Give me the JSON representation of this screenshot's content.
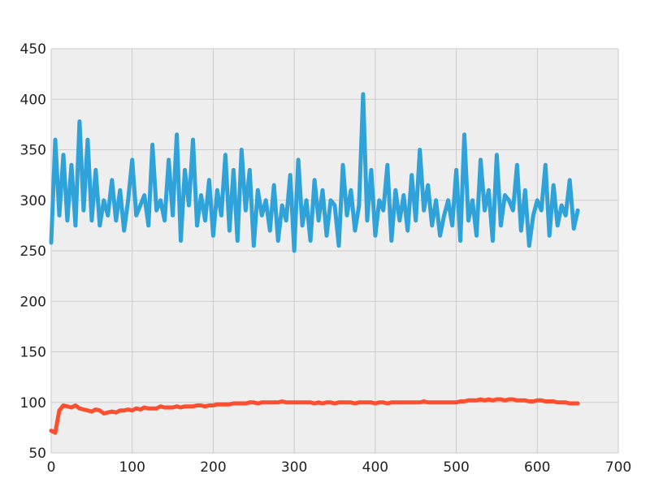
{
  "chart_data": {
    "type": "line",
    "title": "",
    "xlabel": "",
    "ylabel": "",
    "xlim": [
      0,
      700
    ],
    "ylim": [
      50,
      450
    ],
    "x_ticks": [
      "0",
      "100",
      "200",
      "300",
      "400",
      "500",
      "600",
      "700"
    ],
    "y_ticks": [
      "50",
      "100",
      "150",
      "200",
      "250",
      "300",
      "350",
      "400",
      "450"
    ],
    "grid": true,
    "legend": "none",
    "style": {
      "background": "#eeeeee",
      "grid_color": "#cbcbcb"
    },
    "x": [
      0,
      5,
      10,
      15,
      20,
      25,
      30,
      35,
      40,
      45,
      50,
      55,
      60,
      65,
      70,
      75,
      80,
      85,
      90,
      95,
      100,
      105,
      110,
      115,
      120,
      125,
      130,
      135,
      140,
      145,
      150,
      155,
      160,
      165,
      170,
      175,
      180,
      185,
      190,
      195,
      200,
      205,
      210,
      215,
      220,
      225,
      230,
      235,
      240,
      245,
      250,
      255,
      260,
      265,
      270,
      275,
      280,
      285,
      290,
      295,
      300,
      305,
      310,
      315,
      320,
      325,
      330,
      335,
      340,
      345,
      350,
      355,
      360,
      365,
      370,
      375,
      380,
      385,
      390,
      395,
      400,
      405,
      410,
      415,
      420,
      425,
      430,
      435,
      440,
      445,
      450,
      455,
      460,
      465,
      470,
      475,
      480,
      485,
      490,
      495,
      500,
      505,
      510,
      515,
      520,
      525,
      530,
      535,
      540,
      545,
      550,
      555,
      560,
      565,
      570,
      575,
      580,
      585,
      590,
      595,
      600,
      605,
      610,
      615,
      620,
      625,
      630,
      635,
      640,
      645,
      650
    ],
    "series": [
      {
        "color": "#30a2da",
        "values": [
          258,
          360,
          285,
          345,
          280,
          335,
          275,
          378,
          290,
          360,
          280,
          330,
          275,
          300,
          285,
          320,
          280,
          310,
          270,
          300,
          340,
          285,
          295,
          305,
          275,
          355,
          290,
          300,
          280,
          340,
          285,
          365,
          260,
          330,
          295,
          360,
          275,
          305,
          280,
          320,
          265,
          310,
          285,
          345,
          270,
          330,
          260,
          350,
          290,
          330,
          255,
          310,
          285,
          300,
          270,
          315,
          260,
          295,
          280,
          325,
          250,
          340,
          275,
          300,
          260,
          320,
          280,
          310,
          265,
          300,
          295,
          255,
          335,
          285,
          310,
          270,
          295,
          405,
          280,
          330,
          265,
          300,
          290,
          335,
          260,
          310,
          280,
          305,
          270,
          325,
          280,
          350,
          290,
          315,
          275,
          300,
          265,
          285,
          300,
          275,
          330,
          260,
          365,
          280,
          300,
          265,
          340,
          290,
          310,
          260,
          345,
          275,
          305,
          300,
          290,
          335,
          270,
          310,
          255,
          285,
          300,
          290,
          335,
          265,
          315,
          275,
          295,
          285,
          320,
          272,
          290
        ]
      },
      {
        "color": "#fc4f30",
        "values": [
          72,
          70,
          92,
          97,
          96,
          95,
          97,
          94,
          93,
          92,
          91,
          93,
          92,
          89,
          90,
          91,
          90,
          92,
          92,
          93,
          92,
          94,
          93,
          95,
          94,
          94,
          94,
          96,
          95,
          95,
          95,
          96,
          95,
          96,
          96,
          96,
          97,
          97,
          96,
          97,
          97,
          98,
          98,
          98,
          98,
          99,
          99,
          99,
          99,
          100,
          100,
          99,
          100,
          100,
          100,
          100,
          100,
          101,
          100,
          100,
          100,
          100,
          100,
          100,
          100,
          99,
          100,
          99,
          100,
          100,
          99,
          100,
          100,
          100,
          100,
          99,
          100,
          100,
          100,
          100,
          99,
          100,
          100,
          99,
          100,
          100,
          100,
          100,
          100,
          100,
          100,
          100,
          101,
          100,
          100,
          100,
          100,
          100,
          100,
          100,
          100,
          101,
          101,
          102,
          102,
          102,
          103,
          102,
          103,
          102,
          103,
          103,
          102,
          103,
          103,
          102,
          102,
          102,
          101,
          101,
          102,
          102,
          101,
          101,
          101,
          100,
          100,
          100,
          99,
          99,
          99
        ]
      }
    ]
  }
}
